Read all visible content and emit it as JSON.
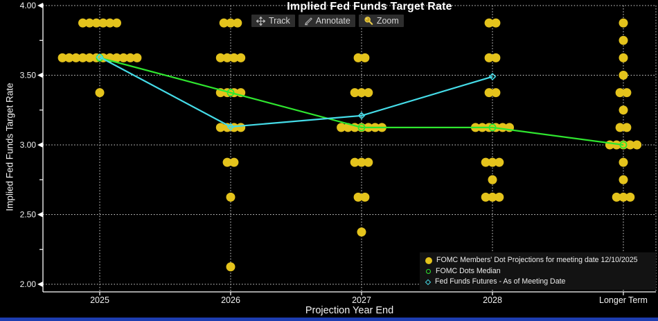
{
  "window": {
    "title": "Implied Fed Funds Target Rate"
  },
  "toolbar": {
    "items": [
      {
        "label": "Track",
        "icon": "track-crosshair-icon"
      },
      {
        "label": "Annotate",
        "icon": "annotate-pencil-icon"
      },
      {
        "label": "Zoom",
        "icon": "zoom-magnifier-icon"
      }
    ]
  },
  "colors": {
    "background": "#000000",
    "dots": "#E4C31C",
    "median": "#2FE62F",
    "futures": "#45DCE8",
    "grid": "#DCDCDC",
    "text": "#F2F2F2"
  },
  "chart_data": {
    "type": "scatter",
    "title": "Implied Fed Funds Target Rate",
    "xlabel": "Projection Year End",
    "ylabel": "Implied Fed Funds Target Rate",
    "ylim": [
      2.0,
      4.0
    ],
    "grid": "dotted horizontal and vertical gridlines on black",
    "legend_position": "bottom-right",
    "yticks": [
      {
        "label": "4.00",
        "value": 4.0
      },
      {
        "label": "3.50",
        "value": 3.5
      },
      {
        "label": "3.00",
        "value": 3.0
      },
      {
        "label": "2.50",
        "value": 2.5
      },
      {
        "label": "2.00",
        "value": 2.0
      }
    ],
    "ytick_minor_values": [
      3.75,
      3.25,
      2.75,
      2.25
    ],
    "categories": [
      "2025",
      "2026",
      "2027",
      "2028",
      "Longer Term"
    ],
    "series": [
      {
        "name": "FOMC Members' Dot Projections for meeting date 12/10/2025",
        "marker": "filled-circle",
        "color": "#E4C31C",
        "clusters_by_category": [
          [
            {
              "rate": 3.875,
              "count": 6
            },
            {
              "rate": 3.625,
              "count": 12
            },
            {
              "rate": 3.375,
              "count": 1
            }
          ],
          [
            {
              "rate": 3.875,
              "count": 3
            },
            {
              "rate": 3.625,
              "count": 4
            },
            {
              "rate": 3.375,
              "count": 4
            },
            {
              "rate": 3.125,
              "count": 4
            },
            {
              "rate": 2.875,
              "count": 2
            },
            {
              "rate": 2.625,
              "count": 1
            },
            {
              "rate": 2.125,
              "count": 1
            }
          ],
          [
            {
              "rate": 3.625,
              "count": 2
            },
            {
              "rate": 3.375,
              "count": 3
            },
            {
              "rate": 3.125,
              "count": 7
            },
            {
              "rate": 2.875,
              "count": 3
            },
            {
              "rate": 2.625,
              "count": 2
            },
            {
              "rate": 2.375,
              "count": 1
            }
          ],
          [
            {
              "rate": 3.875,
              "count": 2
            },
            {
              "rate": 3.625,
              "count": 2
            },
            {
              "rate": 3.375,
              "count": 2
            },
            {
              "rate": 3.125,
              "count": 6
            },
            {
              "rate": 2.875,
              "count": 3
            },
            {
              "rate": 2.75,
              "count": 1
            },
            {
              "rate": 2.625,
              "count": 3
            }
          ],
          [
            {
              "rate": 3.875,
              "count": 1
            },
            {
              "rate": 3.75,
              "count": 1
            },
            {
              "rate": 3.625,
              "count": 1
            },
            {
              "rate": 3.5,
              "count": 1
            },
            {
              "rate": 3.375,
              "count": 2
            },
            {
              "rate": 3.25,
              "count": 1
            },
            {
              "rate": 3.125,
              "count": 2
            },
            {
              "rate": 3.0,
              "count": 5
            },
            {
              "rate": 2.875,
              "count": 1
            },
            {
              "rate": 2.75,
              "count": 1
            },
            {
              "rate": 2.625,
              "count": 3
            }
          ]
        ]
      },
      {
        "name": "FOMC Dots Median",
        "marker": "open-circle",
        "color": "#2FE62F",
        "values": [
          3.625,
          3.375,
          3.125,
          3.125,
          3.0
        ]
      },
      {
        "name": "Fed Funds Futures - As of Meeting Date",
        "marker": "open-diamond",
        "color": "#45DCE8",
        "x": [
          "2025",
          "2026",
          "2027",
          "2028"
        ],
        "values": [
          3.63,
          3.13,
          3.21,
          3.49
        ]
      }
    ]
  }
}
